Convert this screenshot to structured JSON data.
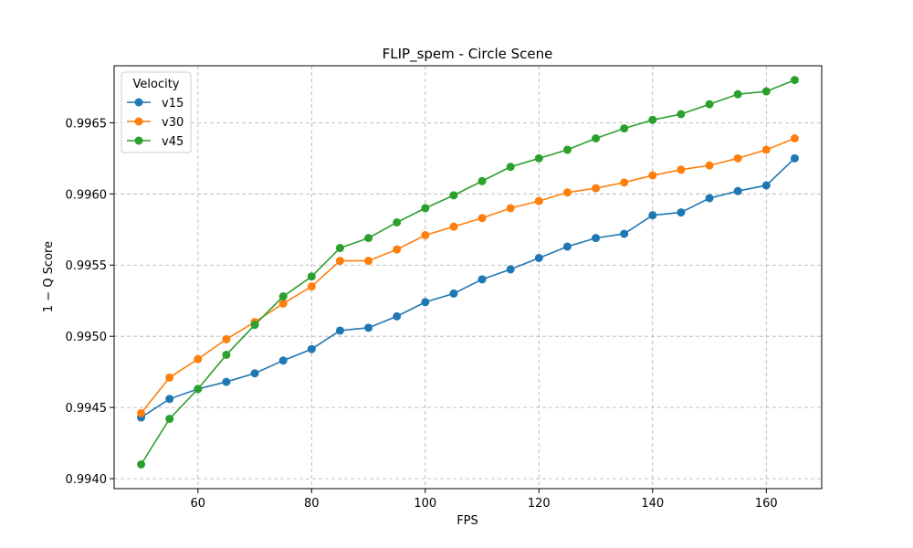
{
  "chart_data": {
    "type": "line",
    "title": "FLIP_spem - Circle Scene",
    "xlabel": "FPS",
    "ylabel": "1 − Q Score",
    "xlim": [
      45.25,
      169.75
    ],
    "ylim": [
      0.99393,
      0.9969
    ],
    "x_ticks": [
      60,
      80,
      100,
      120,
      140,
      160
    ],
    "y_ticks": [
      0.994,
      0.9945,
      0.995,
      0.9955,
      0.996,
      0.9965
    ],
    "x_tick_labels": [
      "60",
      "80",
      "100",
      "120",
      "140",
      "160"
    ],
    "y_tick_labels": [
      "0.9940",
      "0.9945",
      "0.9950",
      "0.9955",
      "0.9960",
      "0.9965"
    ],
    "grid": true,
    "legend": {
      "title": "Velocity",
      "placement": "top-left"
    },
    "x": [
      50,
      55,
      60,
      65,
      70,
      75,
      80,
      85,
      90,
      95,
      100,
      105,
      110,
      115,
      120,
      125,
      130,
      135,
      140,
      145,
      150,
      155,
      160,
      165
    ],
    "series": [
      {
        "name": "v15",
        "color": "#1f77b4",
        "values": [
          0.99443,
          0.99456,
          0.99463,
          0.99468,
          0.99474,
          0.99483,
          0.99491,
          0.99504,
          0.99506,
          0.99514,
          0.99524,
          0.9953,
          0.9954,
          0.99547,
          0.99555,
          0.99563,
          0.99569,
          0.99572,
          0.99585,
          0.99587,
          0.99597,
          0.99602,
          0.99606,
          0.99625
        ]
      },
      {
        "name": "v30",
        "color": "#ff7f0e",
        "values": [
          0.99446,
          0.99471,
          0.99484,
          0.99498,
          0.9951,
          0.99523,
          0.99535,
          0.99553,
          0.99553,
          0.99561,
          0.99571,
          0.99577,
          0.99583,
          0.9959,
          0.99595,
          0.99601,
          0.99604,
          0.99608,
          0.99613,
          0.99617,
          0.9962,
          0.99625,
          0.99631,
          0.99639
        ]
      },
      {
        "name": "v45",
        "color": "#2ca02c",
        "values": [
          0.9941,
          0.99442,
          0.99463,
          0.99487,
          0.99508,
          0.99528,
          0.99542,
          0.99562,
          0.99569,
          0.9958,
          0.9959,
          0.99599,
          0.99609,
          0.99619,
          0.99625,
          0.99631,
          0.99639,
          0.99646,
          0.99652,
          0.99656,
          0.99663,
          0.9967,
          0.99672,
          0.9968
        ]
      }
    ]
  }
}
